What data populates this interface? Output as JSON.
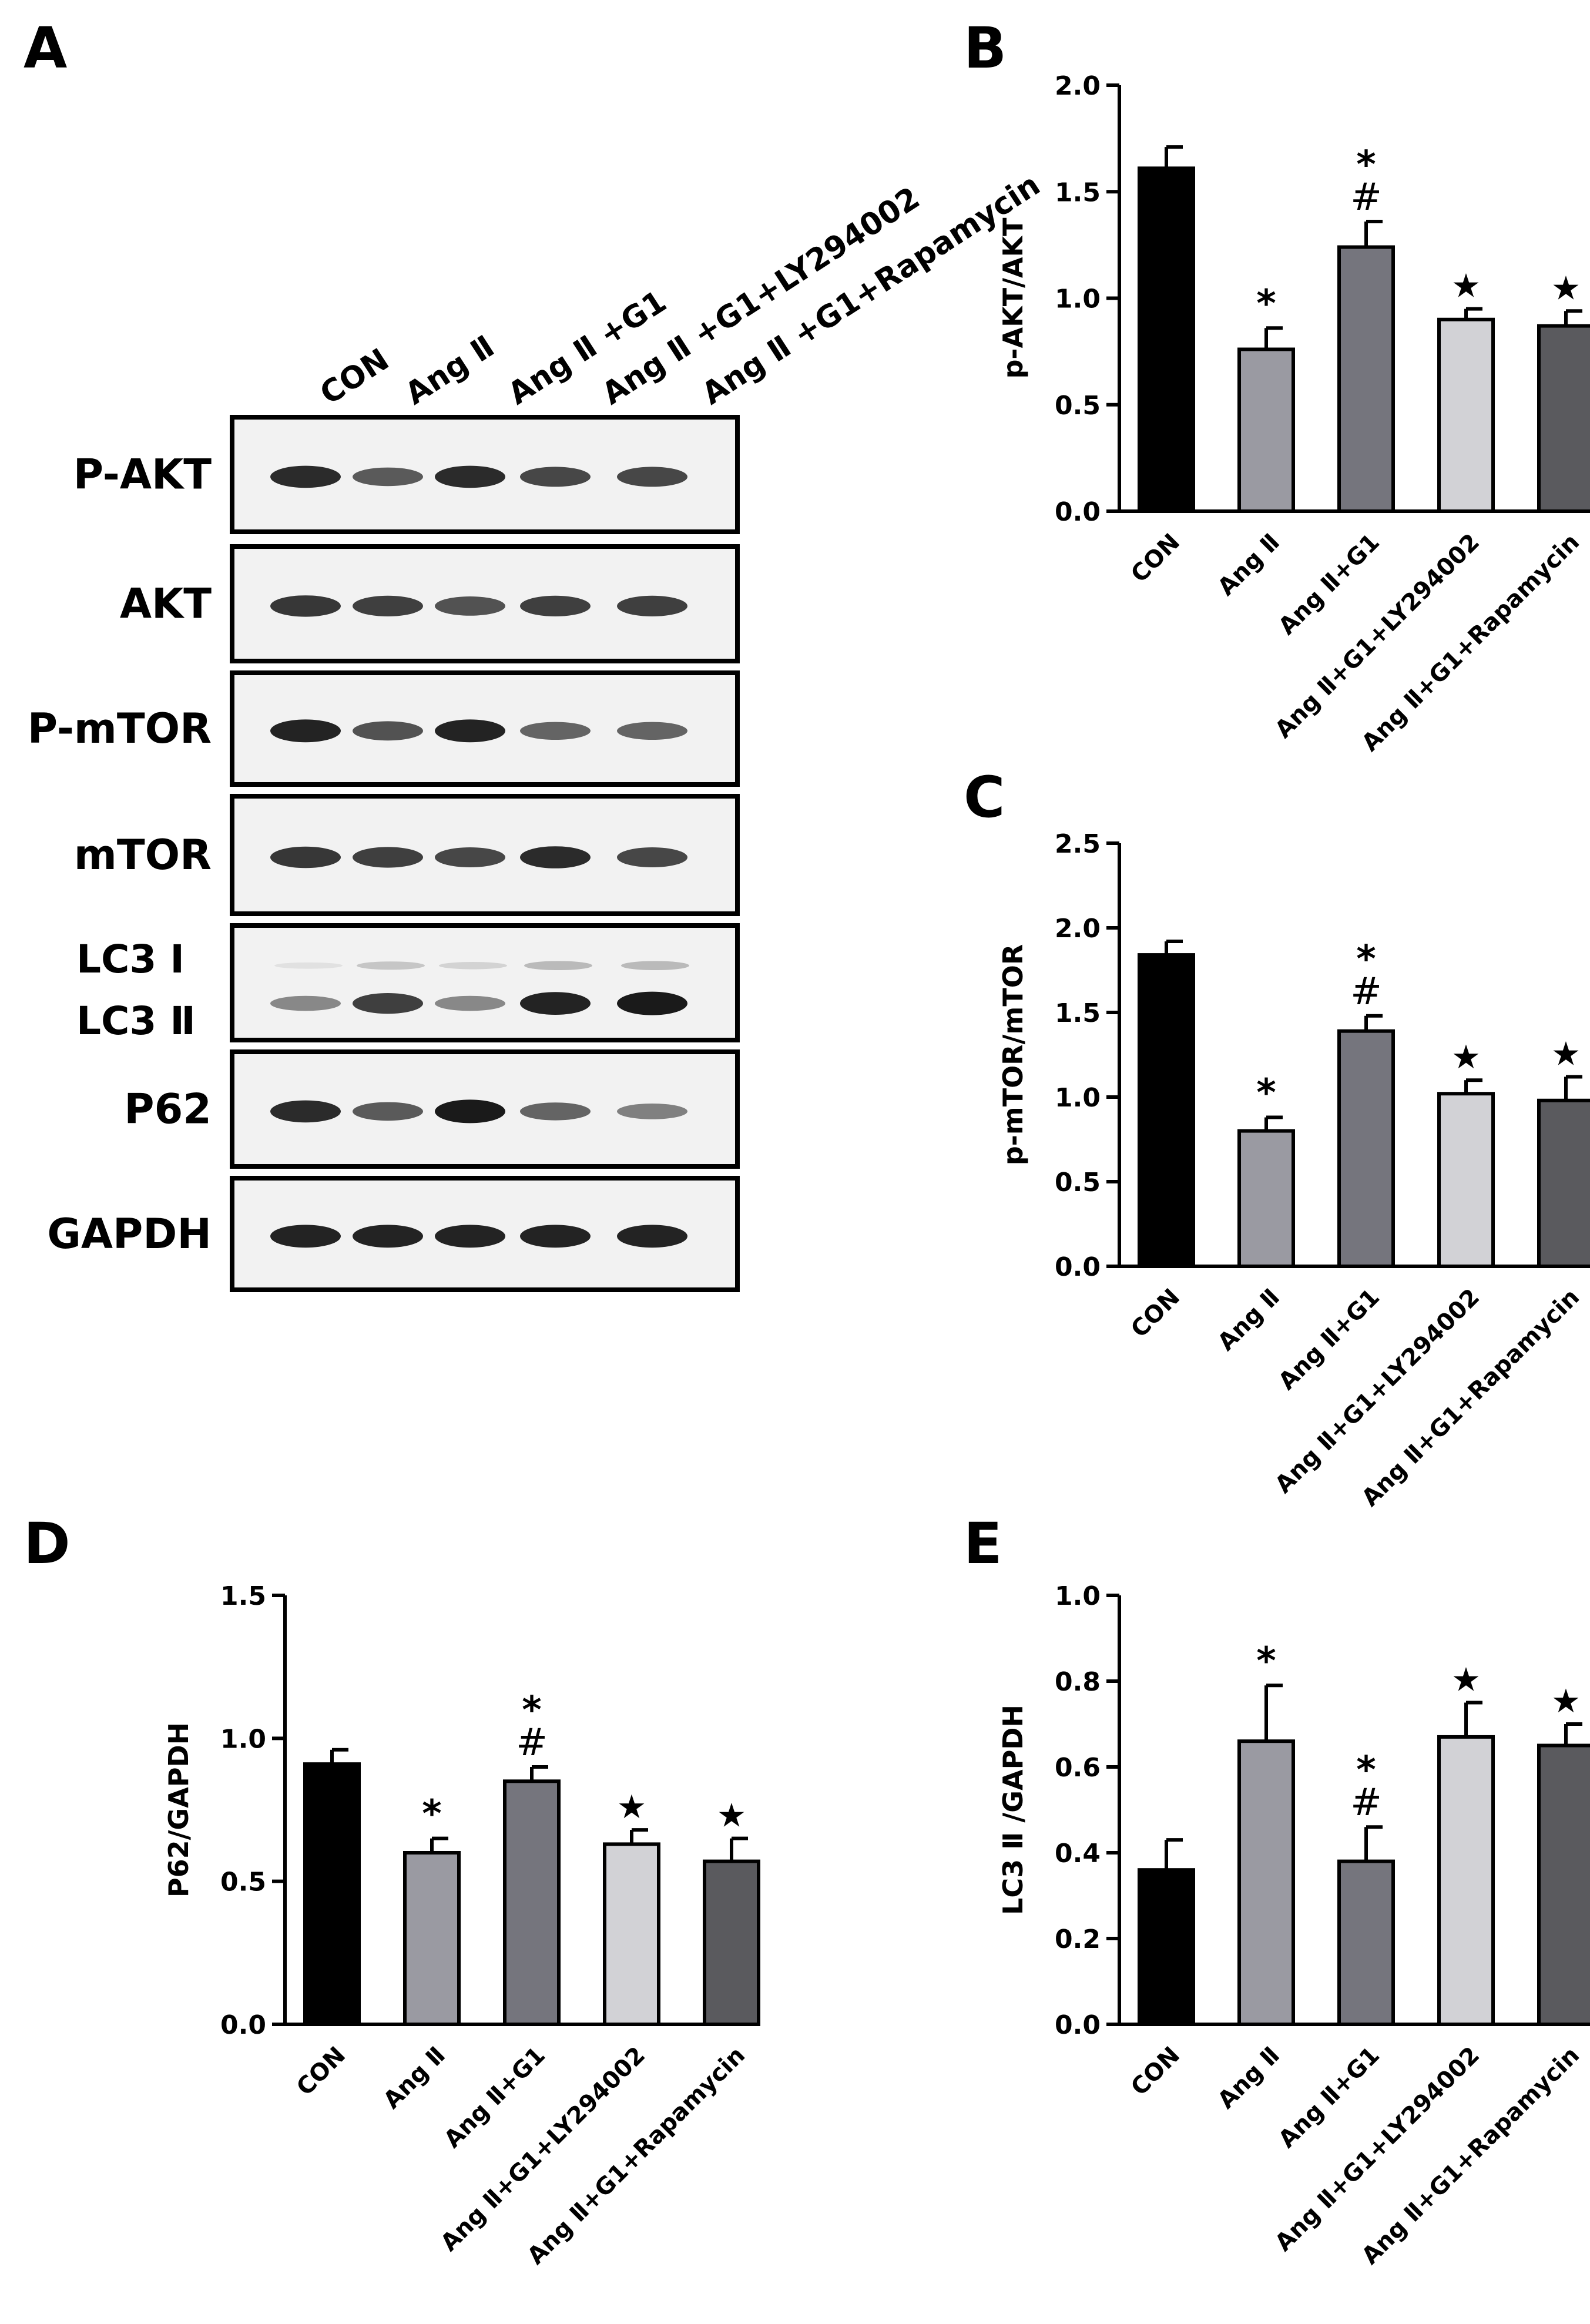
{
  "colors": {
    "axis": "#000000",
    "bar_fills": [
      "#000000",
      "#9a9aa2",
      "#75757d",
      "#d2d2d6",
      "#5a5a5e"
    ],
    "blot_background": "#f2f2f2",
    "band": "#1a1a1a"
  },
  "panel_a": {
    "label": "A",
    "lanes": [
      "CON",
      "Ang Ⅱ",
      "Ang Ⅱ +G1",
      "Ang Ⅱ +G1+LY294002",
      "Ang Ⅱ +G1+Rapamycin"
    ],
    "blots": [
      {
        "label": "P-AKT",
        "band_intensity": [
          0.9,
          0.65,
          0.9,
          0.75,
          0.75
        ]
      },
      {
        "label": "AKT",
        "band_intensity": [
          0.85,
          0.8,
          0.7,
          0.8,
          0.8
        ]
      },
      {
        "label": "P-mTOR",
        "band_intensity": [
          0.95,
          0.7,
          0.95,
          0.6,
          0.6
        ]
      },
      {
        "label": "mTOR",
        "band_intensity": [
          0.85,
          0.8,
          0.75,
          0.9,
          0.75
        ]
      },
      {
        "label": "LC3 Ⅰ",
        "label2": "LC3 Ⅱ",
        "band_intensity": [
          0.4,
          0.8,
          0.4,
          0.95,
          1.0
        ],
        "upper_band_intensity": [
          0.05,
          0.25,
          0.15,
          0.35,
          0.35
        ]
      },
      {
        "label": "P62",
        "band_intensity": [
          0.9,
          0.65,
          1.0,
          0.6,
          0.45
        ]
      },
      {
        "label": "GAPDH",
        "band_intensity": [
          0.95,
          0.95,
          0.95,
          0.95,
          0.95
        ]
      }
    ]
  },
  "chart_data": [
    {
      "panel": "B",
      "type": "bar",
      "categories": [
        "CON",
        "Ang Ⅱ",
        "Ang Ⅱ+G1",
        "Ang Ⅱ+G1+LY294002",
        "Ang Ⅱ+G1+Rapamycin"
      ],
      "values": [
        1.61,
        0.76,
        1.24,
        0.9,
        0.87
      ],
      "errors": [
        0.1,
        0.1,
        0.12,
        0.05,
        0.07
      ],
      "marks": [
        [],
        [
          "*"
        ],
        [
          "*",
          "#"
        ],
        [
          "★"
        ],
        [
          "★"
        ]
      ],
      "ylabel": "p-AKT/AKT",
      "ylim": [
        0,
        2.0
      ],
      "yticks": [
        "0.0",
        "0.5",
        "1.0",
        "1.5",
        "2.0"
      ]
    },
    {
      "panel": "C",
      "type": "bar",
      "categories": [
        "CON",
        "Ang Ⅱ",
        "Ang Ⅱ+G1",
        "Ang Ⅱ+G1+LY294002",
        "Ang Ⅱ+G1+Rapamycin"
      ],
      "values": [
        1.84,
        0.8,
        1.39,
        1.02,
        0.98
      ],
      "errors": [
        0.08,
        0.08,
        0.09,
        0.08,
        0.14
      ],
      "marks": [
        [],
        [
          "*"
        ],
        [
          "*",
          "#"
        ],
        [
          "★"
        ],
        [
          "★"
        ]
      ],
      "ylabel": "p-mTOR/mTOR",
      "ylim": [
        0,
        2.5
      ],
      "yticks": [
        "0.0",
        "0.5",
        "1.0",
        "1.5",
        "2.0",
        "2.5"
      ]
    },
    {
      "panel": "D",
      "type": "bar",
      "categories": [
        "CON",
        "Ang Ⅱ",
        "Ang Ⅱ+G1",
        "Ang Ⅱ+G1+LY294002",
        "Ang Ⅱ+G1+Rapamycin"
      ],
      "values": [
        0.91,
        0.6,
        0.85,
        0.63,
        0.57
      ],
      "errors": [
        0.05,
        0.05,
        0.05,
        0.05,
        0.08
      ],
      "marks": [
        [],
        [
          "*"
        ],
        [
          "*",
          "#"
        ],
        [
          "★"
        ],
        [
          "★"
        ]
      ],
      "ylabel": "P62/GAPDH",
      "ylim": [
        0,
        1.5
      ],
      "yticks": [
        "0.0",
        "0.5",
        "1.0",
        "1.5"
      ]
    },
    {
      "panel": "E",
      "type": "bar",
      "categories": [
        "CON",
        "Ang Ⅱ",
        "Ang Ⅱ+G1",
        "Ang Ⅱ+G1+LY294002",
        "Ang Ⅱ+G1+Rapamycin"
      ],
      "values": [
        0.36,
        0.66,
        0.38,
        0.67,
        0.65
      ],
      "errors": [
        0.07,
        0.13,
        0.08,
        0.08,
        0.05
      ],
      "marks": [
        [],
        [
          "*"
        ],
        [
          "*",
          "#"
        ],
        [
          "★"
        ],
        [
          "★"
        ]
      ],
      "ylabel": "LC3 Ⅱ /GAPDH",
      "ylim": [
        0,
        1.0
      ],
      "yticks": [
        "0.0",
        "0.2",
        "0.4",
        "0.6",
        "0.8",
        "1.0"
      ]
    }
  ]
}
